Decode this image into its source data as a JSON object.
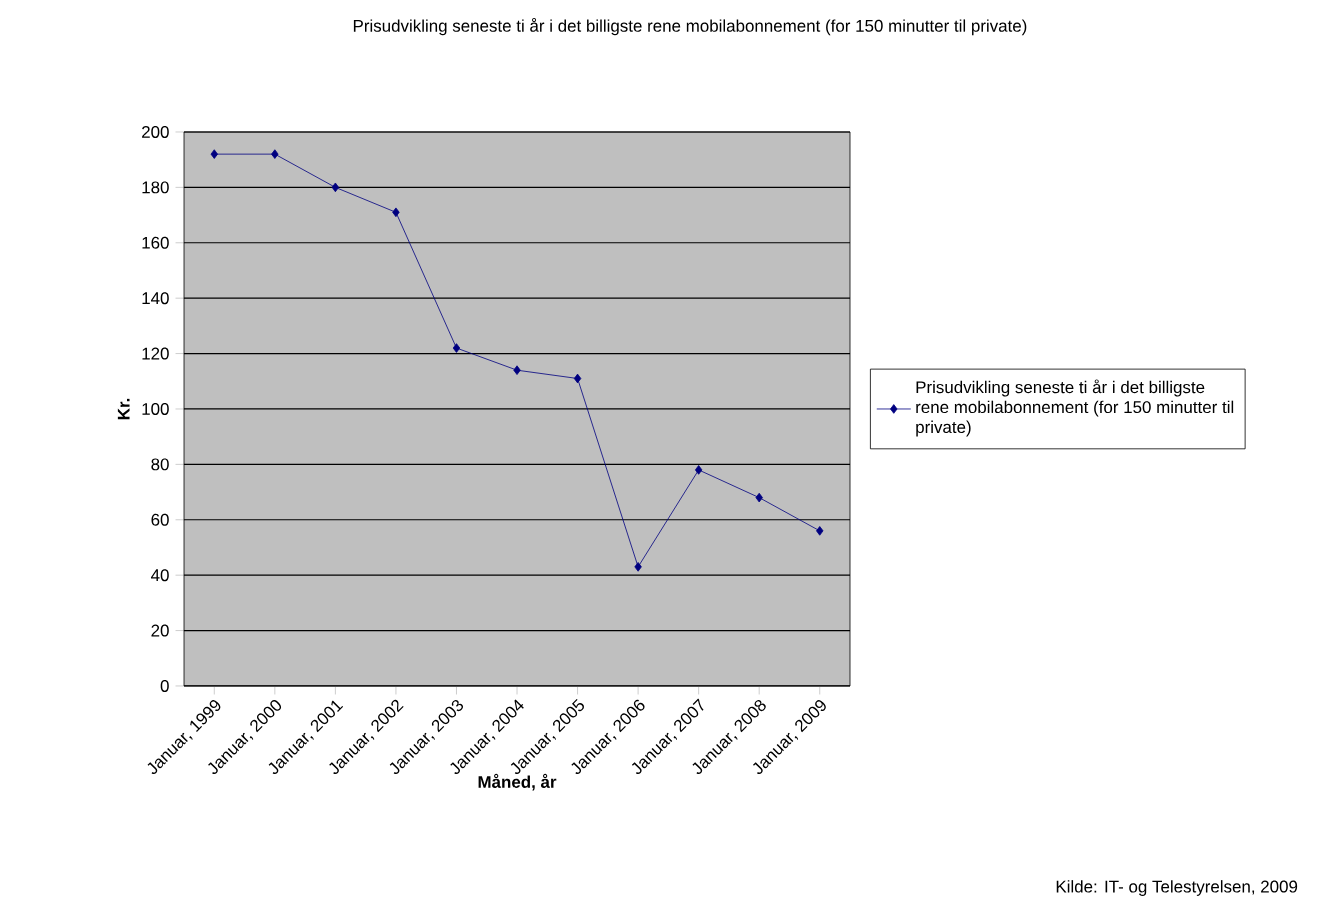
{
  "chart_data": {
    "type": "line",
    "title": "Prisudvikling seneste ti år i det billigste rene mobilabonnement (for 150 minutter til private)",
    "xlabel": "Måned, år",
    "ylabel": "Kr.",
    "categories": [
      "Januar, 1999",
      "Januar, 2000",
      "Januar, 2001",
      "Januar, 2002",
      "Januar, 2003",
      "Januar, 2004",
      "Januar, 2005",
      "Januar, 2006",
      "Januar, 2007",
      "Januar, 2008",
      "Januar, 2009"
    ],
    "series": [
      {
        "name": "Prisudvikling seneste ti år i det billigste rene mobilabonnement (for 150 minutter til private)",
        "color": "#000080",
        "values": [
          192,
          192,
          180,
          171,
          122,
          114,
          111,
          43,
          78,
          68,
          56
        ]
      }
    ],
    "ylim": [
      0,
      200
    ],
    "yticks": [
      0,
      20,
      40,
      60,
      80,
      100,
      120,
      140,
      160,
      180,
      200
    ],
    "grid": "y",
    "legend": "right",
    "marker": "diamond",
    "annotations": [
      "Kilde: IT- og Telestyrelsen, 2009"
    ]
  }
}
